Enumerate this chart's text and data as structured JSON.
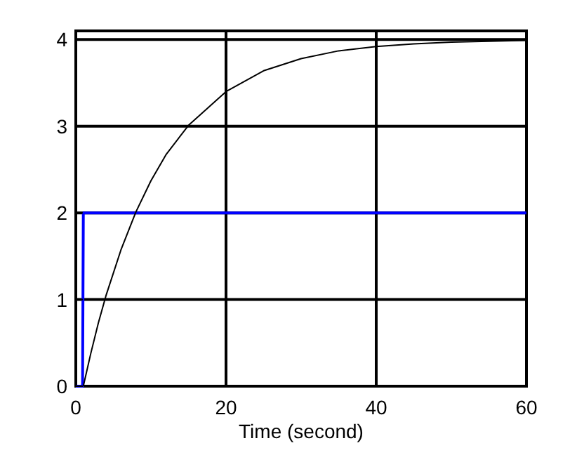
{
  "chart_data": {
    "type": "line",
    "xlabel": "Time (second)",
    "xlim": [
      0,
      60
    ],
    "ylim": [
      0,
      4.1
    ],
    "xticks": [
      0,
      20,
      40,
      60
    ],
    "yticks": [
      0,
      1,
      2,
      3,
      4
    ],
    "grid": true,
    "series": [
      {
        "color": "#0000ff",
        "x": [
          0,
          0.9,
          1,
          60
        ],
        "values": [
          0,
          0,
          2,
          2
        ]
      },
      {
        "color": "#000000",
        "x": [
          1,
          2,
          3,
          4,
          6,
          8,
          10,
          12,
          15,
          20,
          25,
          30,
          35,
          40,
          45,
          50,
          60
        ],
        "values": [
          0,
          0.38,
          0.73,
          1.04,
          1.57,
          2.01,
          2.37,
          2.67,
          3.01,
          3.4,
          3.64,
          3.78,
          3.87,
          3.92,
          3.95,
          3.97,
          3.99
        ]
      }
    ]
  }
}
